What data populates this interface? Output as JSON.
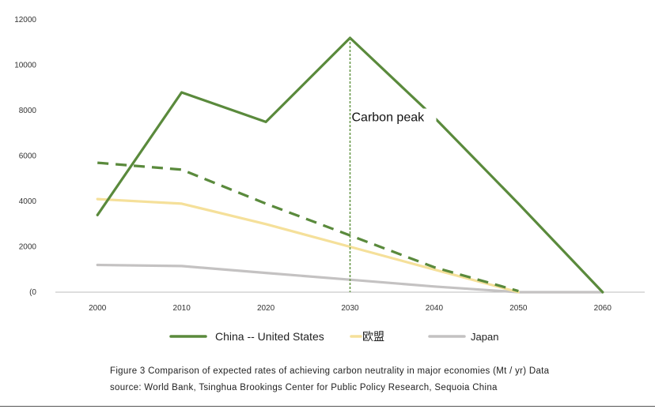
{
  "chart_data": {
    "type": "line",
    "title": "",
    "xlabel": "",
    "ylabel": "",
    "x": [
      2000,
      2010,
      2020,
      2030,
      2040,
      2050,
      2060
    ],
    "xlim": [
      1995,
      2065
    ],
    "ylim": [
      0,
      12000
    ],
    "yticks": [
      0,
      2000,
      4000,
      6000,
      8000,
      10000,
      12000
    ],
    "ytick_labels": [
      "(0",
      "2000",
      "4000",
      "6000",
      "8000",
      "10000",
      "12000"
    ],
    "grid": false,
    "legend_position": "bottom",
    "series": [
      {
        "name": "China -- United States",
        "color": "#5a8a3c",
        "style": "solid",
        "points": [
          [
            2000,
            3400
          ],
          [
            2010,
            8800
          ],
          [
            2020,
            7500
          ],
          [
            2030,
            11200
          ],
          [
            2040,
            7700
          ],
          [
            2050,
            3900
          ],
          [
            2060,
            0
          ]
        ]
      },
      {
        "name": "",
        "color": "#5a8a3c",
        "style": "dashed",
        "points": [
          [
            2000,
            5700
          ],
          [
            2010,
            5400
          ],
          [
            2020,
            3900
          ],
          [
            2030,
            2500
          ],
          [
            2040,
            1100
          ],
          [
            2050,
            50
          ]
        ]
      },
      {
        "name": "欧盟",
        "color": "#f5e09a",
        "style": "solid",
        "points": [
          [
            2000,
            4100
          ],
          [
            2010,
            3900
          ],
          [
            2020,
            3000
          ],
          [
            2030,
            2000
          ],
          [
            2040,
            1000
          ],
          [
            2050,
            0
          ]
        ]
      },
      {
        "name": "Japan",
        "color": "#c4c2c2",
        "style": "solid",
        "points": [
          [
            2000,
            1200
          ],
          [
            2010,
            1150
          ],
          [
            2020,
            850
          ],
          [
            2030,
            550
          ],
          [
            2040,
            250
          ],
          [
            2050,
            0
          ],
          [
            2060,
            0
          ]
        ]
      }
    ],
    "annotations": [
      {
        "text": "Carbon peak",
        "x": 2030,
        "y": 7600,
        "vline_x": 2030,
        "vline_top": 11200,
        "vline_color": "#6a9a4c"
      }
    ]
  },
  "caption": {
    "line1": "Figure 3 Comparison of expected rates of achieving carbon neutrality in major economies (Mt / yr) Data",
    "line2": "source: World Bank, Tsinghua Brookings Center for Public Policy Research, Sequoia China"
  }
}
